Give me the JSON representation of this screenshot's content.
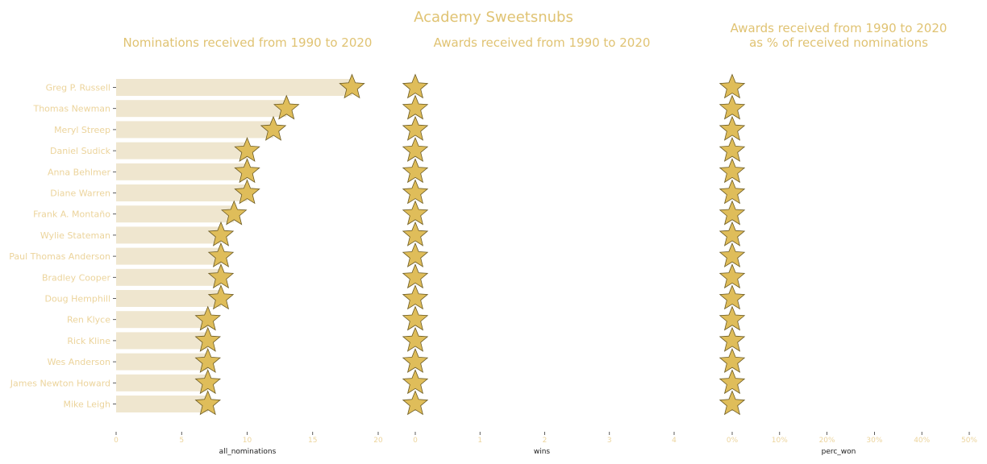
{
  "title": "Academy Sweetsnubs",
  "colors": {
    "bar": "#efe6cf",
    "star_fill": "#dfbd5a",
    "star_stroke": "#6b5a22",
    "text": "#e0c373",
    "label": "#ecd49c"
  },
  "categories": [
    "Greg P. Russell",
    "Thomas Newman",
    "Meryl Streep",
    "Daniel Sudick",
    "Anna Behlmer",
    "Diane Warren",
    "Frank A. Montaño",
    "Wylie Stateman",
    "Paul Thomas Anderson",
    "Bradley Cooper",
    "Doug Hemphill",
    "Ren Klyce",
    "Rick Kline",
    "Wes Anderson",
    "James Newton Howard",
    "Mike Leigh"
  ],
  "chart_data": [
    {
      "type": "bar",
      "title": "Nominations received from 1990 to 2020",
      "xlabel": "all_nominations",
      "xlim": [
        0,
        20
      ],
      "xticks": [
        "0",
        "5",
        "10",
        "15",
        "20"
      ],
      "categories": [
        "Greg P. Russell",
        "Thomas Newman",
        "Meryl Streep",
        "Daniel Sudick",
        "Anna Behlmer",
        "Diane Warren",
        "Frank A. Montaño",
        "Wylie Stateman",
        "Paul Thomas Anderson",
        "Bradley Cooper",
        "Doug Hemphill",
        "Ren Klyce",
        "Rick Kline",
        "Wes Anderson",
        "James Newton Howard",
        "Mike Leigh"
      ],
      "values": [
        18,
        13,
        12,
        10,
        10,
        10,
        9,
        8,
        8,
        8,
        8,
        7,
        7,
        7,
        7,
        7
      ]
    },
    {
      "type": "scatter",
      "title": "Awards received from 1990 to 2020",
      "xlabel": "wins",
      "xlim": [
        0,
        4
      ],
      "xticks": [
        "0",
        "1",
        "2",
        "3",
        "4"
      ],
      "categories": [
        "Greg P. Russell",
        "Thomas Newman",
        "Meryl Streep",
        "Daniel Sudick",
        "Anna Behlmer",
        "Diane Warren",
        "Frank A. Montaño",
        "Wylie Stateman",
        "Paul Thomas Anderson",
        "Bradley Cooper",
        "Doug Hemphill",
        "Ren Klyce",
        "Rick Kline",
        "Wes Anderson",
        "James Newton Howard",
        "Mike Leigh"
      ],
      "values": [
        0,
        0,
        0,
        0,
        0,
        0,
        0,
        0,
        0,
        0,
        0,
        0,
        0,
        0,
        0,
        0
      ]
    },
    {
      "type": "scatter",
      "title_lines": [
        "Awards received from 1990 to 2020",
        "as % of received nominations"
      ],
      "xlabel": "perc_won",
      "xlim": [
        0,
        50
      ],
      "xticks": [
        "0%",
        "10%",
        "20%",
        "30%",
        "40%",
        "50%"
      ],
      "categories": [
        "Greg P. Russell",
        "Thomas Newman",
        "Meryl Streep",
        "Daniel Sudick",
        "Anna Behlmer",
        "Diane Warren",
        "Frank A. Montaño",
        "Wylie Stateman",
        "Paul Thomas Anderson",
        "Bradley Cooper",
        "Doug Hemphill",
        "Ren Klyce",
        "Rick Kline",
        "Wes Anderson",
        "James Newton Howard",
        "Mike Leigh"
      ],
      "values": [
        0,
        0,
        0,
        0,
        0,
        0,
        0,
        0,
        0,
        0,
        0,
        0,
        0,
        0,
        0,
        0
      ]
    }
  ]
}
